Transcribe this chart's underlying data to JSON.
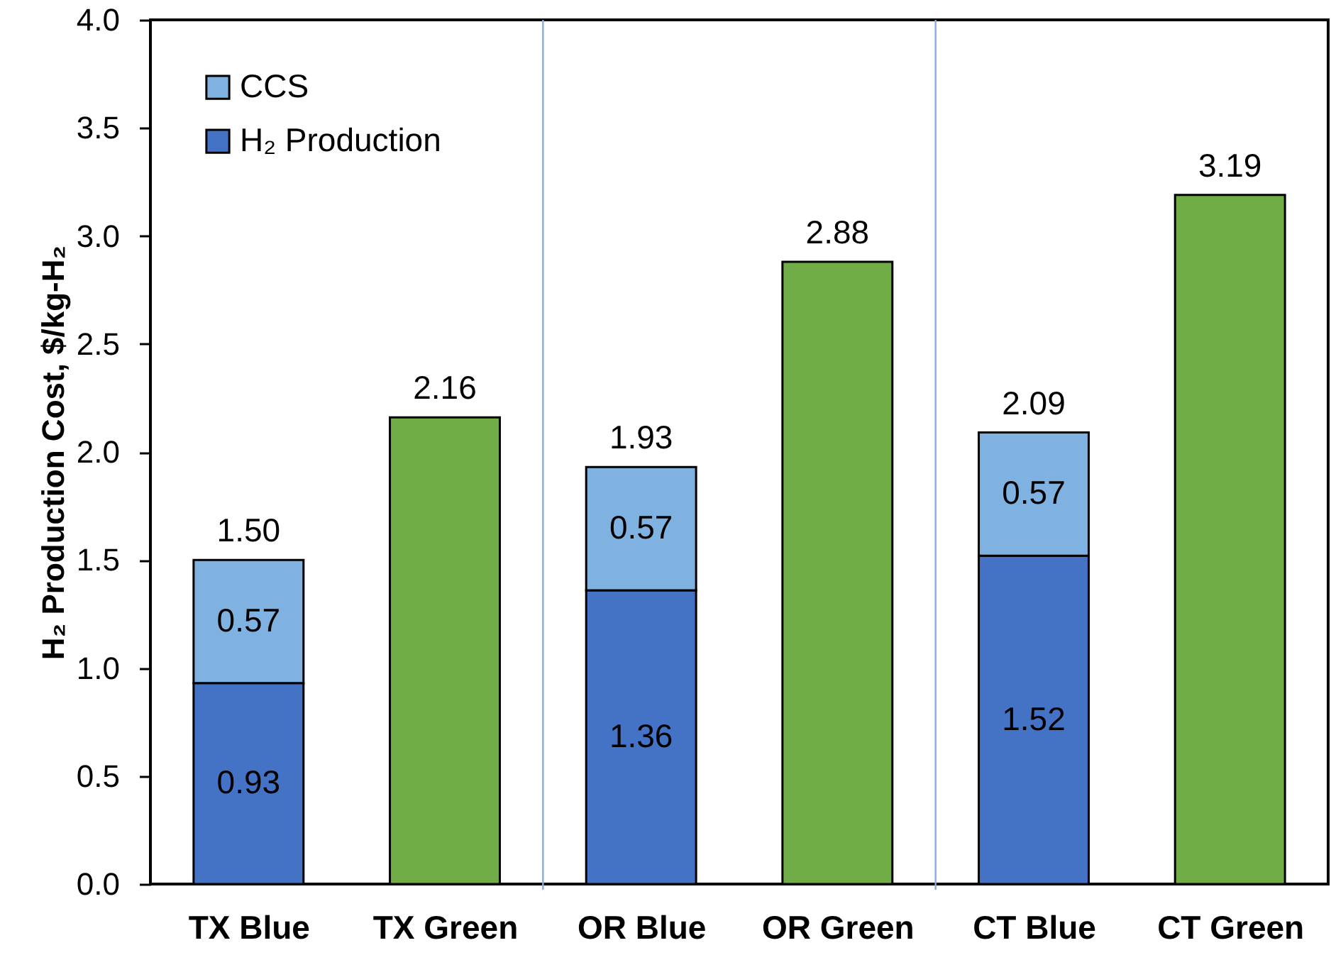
{
  "chart_data": {
    "type": "bar",
    "stacked": true,
    "categories": [
      "TX Blue",
      "TX Green",
      "OR Blue",
      "OR Green",
      "CT Blue",
      "CT Green"
    ],
    "series": [
      {
        "name": "H₂ Production",
        "color": "#4472c4",
        "colors": [
          "#4472c4",
          "#70ad47",
          "#4472c4",
          "#70ad47",
          "#4472c4",
          "#70ad47"
        ],
        "values": [
          0.93,
          2.16,
          1.36,
          2.88,
          1.52,
          3.19
        ],
        "value_labels": [
          "0.93",
          null,
          "1.36",
          null,
          "1.52",
          null
        ]
      },
      {
        "name": "CCS",
        "color": "#7fb2e0",
        "values": [
          0.57,
          null,
          0.57,
          null,
          0.57,
          null
        ],
        "value_labels": [
          "0.57",
          null,
          "0.57",
          null,
          "0.57",
          null
        ]
      }
    ],
    "totals": [
      "1.50",
      "2.16",
      "1.93",
      "2.88",
      "2.09",
      "3.19"
    ],
    "ylabel": "H₂ Production Cost, $/kg-H₂",
    "ylim": [
      0,
      4
    ],
    "yticks": [
      {
        "value": 0,
        "label": "0.0"
      },
      {
        "value": 0.5,
        "label": "0.5"
      },
      {
        "value": 1,
        "label": "1.0"
      },
      {
        "value": 1.5,
        "label": "1.5"
      },
      {
        "value": 2,
        "label": "2.0"
      },
      {
        "value": 2.5,
        "label": "2.5"
      },
      {
        "value": 3,
        "label": "3.0"
      },
      {
        "value": 3.5,
        "label": "3.5"
      },
      {
        "value": 4,
        "label": "4.0"
      }
    ],
    "legend": "top left"
  }
}
